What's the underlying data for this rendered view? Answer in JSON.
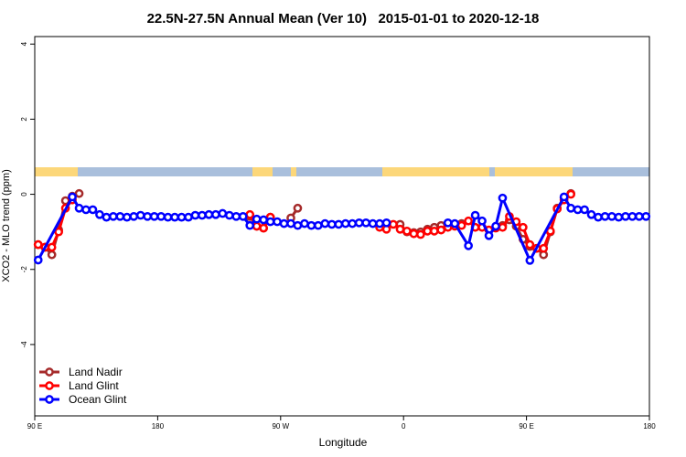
{
  "chart_data": {
    "type": "line",
    "title": "22.5N-27.5N Annual Mean (Ver 10)   2015-01-01 to 2020-12-18",
    "x_label": "Longitude",
    "y_label": "XCO2 - MLO trend (ppm)",
    "xlim": [
      90,
      540
    ],
    "ylim": [
      -5.9,
      4.2
    ],
    "xticks": [
      {
        "value": 90,
        "label": "90 E"
      },
      180,
      {
        "value": 270,
        "label": "90 W"
      },
      {
        "value": 360,
        "label": "0"
      },
      {
        "value": 450,
        "label": "90 E"
      },
      {
        "value": 540,
        "label": "180"
      }
    ],
    "yticks": [
      -4,
      -2,
      0,
      2,
      4
    ],
    "legend": "bottom-left",
    "series": [
      {
        "name": "Land Nadir",
        "color": "#a52a2a",
        "x": [
          92.5,
          97.5,
          102.5,
          107.5,
          112.5,
          117.5,
          122.5,
          127.5,
          247.5,
          252.5,
          257.5,
          262.5,
          267.5,
          277.5,
          282.5,
          287.5,
          357.5,
          362.5,
          367.5,
          372.5,
          377.5,
          382.5,
          387.5,
          392.5,
          397.5,
          402.5,
          407.5,
          432.5,
          437.5,
          442.5,
          447.5,
          452.5,
          457.5,
          462.5,
          467.5,
          472.5,
          477.5,
          482.5
        ],
        "values": [
          -1.34,
          -1.41,
          -1.61,
          -0.95,
          -0.17,
          -0.05,
          0.02,
          null,
          -0.59,
          -0.85,
          -0.9,
          -0.61,
          null,
          -0.63,
          -0.37,
          null,
          -0.8,
          -1.0,
          -1.02,
          -1.0,
          -0.93,
          -0.88,
          -0.83,
          -0.8,
          -0.8,
          -0.78,
          null,
          -0.83,
          -0.68,
          -0.85,
          -1.2,
          -1.39,
          -1.44,
          -1.61,
          -1.0,
          -0.37,
          -0.1,
          0.02
        ]
      },
      {
        "name": "Land Glint",
        "color": "#ff0000",
        "x": [
          92.5,
          97.5,
          102.5,
          107.5,
          112.5,
          117.5,
          122.5,
          247.5,
          252.5,
          257.5,
          262.5,
          267.5,
          342.5,
          347.5,
          352.5,
          357.5,
          362.5,
          367.5,
          372.5,
          377.5,
          382.5,
          387.5,
          392.5,
          397.5,
          402.5,
          407.5,
          412.5,
          417.5,
          422.5,
          427.5,
          432.5,
          437.5,
          442.5,
          447.5,
          452.5,
          457.5,
          462.5,
          467.5,
          472.5,
          477.5,
          482.5
        ],
        "values": [
          -1.34,
          -1.41,
          -1.41,
          -1.0,
          -0.37,
          -0.15,
          null,
          -0.54,
          -0.85,
          -0.9,
          -0.61,
          null,
          -0.88,
          -0.93,
          -0.8,
          -0.93,
          -0.98,
          -1.05,
          -1.07,
          -0.98,
          -0.98,
          -0.95,
          -0.88,
          -0.85,
          -0.83,
          -0.71,
          -0.88,
          -0.88,
          -0.95,
          -0.9,
          -0.88,
          -0.59,
          -0.73,
          -0.88,
          -1.34,
          -1.44,
          -1.44,
          -0.98,
          -0.39,
          -0.15,
          0.0
        ]
      },
      {
        "name": "Ocean Glint",
        "color": "#0000ff",
        "x": [
          92.5,
          117.5,
          122.5,
          127.5,
          132.5,
          137.5,
          142.5,
          147.5,
          152.5,
          157.5,
          162.5,
          167.5,
          172.5,
          177.5,
          182.5,
          187.5,
          192.5,
          197.5,
          202.5,
          207.5,
          212.5,
          217.5,
          222.5,
          227.5,
          232.5,
          237.5,
          242.5,
          247.5,
          252.5,
          257.5,
          262.5,
          267.5,
          272.5,
          277.5,
          282.5,
          287.5,
          292.5,
          297.5,
          302.5,
          307.5,
          312.5,
          317.5,
          322.5,
          327.5,
          332.5,
          337.5,
          342.5,
          347.5,
          352.5,
          392.5,
          397.5,
          407.5,
          412.5,
          417.5,
          422.5,
          427.5,
          432.5,
          452.5,
          477.5,
          482.5,
          487.5,
          492.5,
          497.5,
          502.5,
          507.5,
          512.5,
          517.5,
          522.5,
          527.5,
          532.5,
          537.5
        ],
        "values": [
          -1.75,
          -0.07,
          -0.37,
          -0.41,
          -0.41,
          -0.54,
          -0.61,
          -0.59,
          -0.59,
          -0.61,
          -0.59,
          -0.56,
          -0.59,
          -0.59,
          -0.59,
          -0.61,
          -0.61,
          -0.61,
          -0.61,
          -0.56,
          -0.56,
          -0.54,
          -0.54,
          -0.51,
          -0.56,
          -0.59,
          -0.59,
          -0.83,
          -0.66,
          -0.68,
          -0.73,
          -0.73,
          -0.78,
          -0.78,
          -0.83,
          -0.78,
          -0.83,
          -0.83,
          -0.78,
          -0.8,
          -0.8,
          -0.78,
          -0.78,
          -0.76,
          -0.76,
          -0.78,
          -0.78,
          -0.76,
          null,
          -0.76,
          -0.78,
          -1.37,
          -0.56,
          -0.71,
          -1.1,
          -0.85,
          -0.1,
          -1.76,
          -0.07,
          -0.37,
          -0.41,
          -0.41,
          -0.54,
          -0.61,
          -0.59,
          -0.59,
          -0.61,
          -0.59,
          -0.59,
          -0.59,
          -0.59
        ]
      }
    ]
  }
}
